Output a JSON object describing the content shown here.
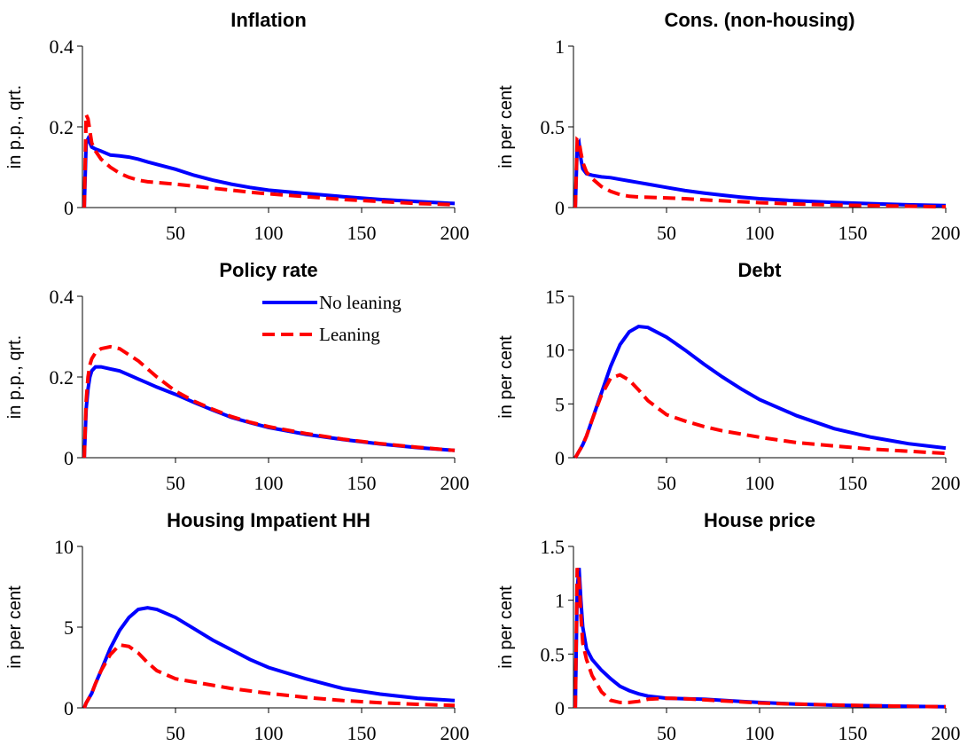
{
  "chart_data": [
    {
      "type": "line",
      "title": "Inflation",
      "y_label": "in p.p., qrt.",
      "x": [
        1,
        2,
        3,
        4,
        5,
        7,
        10,
        15,
        20,
        25,
        30,
        35,
        40,
        50,
        60,
        70,
        80,
        90,
        100,
        120,
        140,
        160,
        180,
        200
      ],
      "series": [
        {
          "color": "#0000ff",
          "dash": "solid",
          "values": [
            0,
            0.16,
            0.17,
            0.16,
            0.15,
            0.145,
            0.14,
            0.13,
            0.128,
            0.125,
            0.12,
            0.113,
            0.107,
            0.095,
            0.08,
            0.068,
            0.058,
            0.05,
            0.043,
            0.035,
            0.027,
            0.02,
            0.015,
            0.01
          ]
        },
        {
          "color": "#ff0000",
          "dash": "dashed",
          "values": [
            0,
            0.23,
            0.22,
            0.19,
            0.16,
            0.14,
            0.12,
            0.1,
            0.085,
            0.075,
            0.068,
            0.064,
            0.062,
            0.058,
            0.053,
            0.048,
            0.043,
            0.038,
            0.034,
            0.027,
            0.02,
            0.015,
            0.01,
            0.007
          ]
        }
      ],
      "xlim": [
        0,
        200
      ],
      "xticks": [
        50,
        100,
        150,
        200
      ],
      "ylim": [
        0,
        0.4
      ],
      "yticks": [
        0,
        0.2,
        0.4
      ]
    },
    {
      "type": "line",
      "title": "Cons. (non-housing)",
      "y_label": "in per cent",
      "x": [
        1,
        2,
        3,
        4,
        5,
        7,
        10,
        15,
        20,
        25,
        30,
        35,
        40,
        50,
        60,
        70,
        80,
        90,
        100,
        120,
        140,
        160,
        180,
        200
      ],
      "series": [
        {
          "color": "#0000ff",
          "dash": "solid",
          "values": [
            0,
            0.38,
            0.4,
            0.3,
            0.24,
            0.21,
            0.2,
            0.19,
            0.185,
            0.175,
            0.165,
            0.155,
            0.145,
            0.125,
            0.105,
            0.09,
            0.077,
            0.065,
            0.055,
            0.042,
            0.032,
            0.024,
            0.017,
            0.012
          ]
        },
        {
          "color": "#ff0000",
          "dash": "dashed",
          "values": [
            0,
            0.42,
            0.41,
            0.34,
            0.28,
            0.22,
            0.18,
            0.13,
            0.1,
            0.08,
            0.07,
            0.066,
            0.064,
            0.06,
            0.055,
            0.048,
            0.042,
            0.036,
            0.03,
            0.022,
            0.016,
            0.012,
            0.008,
            0.005
          ]
        }
      ],
      "xlim": [
        0,
        200
      ],
      "xticks": [
        50,
        100,
        150,
        200
      ],
      "ylim": [
        0,
        1
      ],
      "yticks": [
        0,
        0.5,
        1
      ]
    },
    {
      "type": "line",
      "title": "Policy rate",
      "y_label": "in p.p., qrt.",
      "x": [
        1,
        2,
        3,
        4,
        5,
        7,
        10,
        15,
        20,
        25,
        30,
        35,
        40,
        50,
        60,
        70,
        80,
        90,
        100,
        120,
        140,
        160,
        180,
        200
      ],
      "series": [
        {
          "name": "No leaning",
          "color": "#0000ff",
          "dash": "solid",
          "values": [
            0,
            0.12,
            0.17,
            0.2,
            0.215,
            0.225,
            0.225,
            0.22,
            0.215,
            0.205,
            0.195,
            0.185,
            0.175,
            0.157,
            0.137,
            0.118,
            0.1,
            0.087,
            0.075,
            0.058,
            0.045,
            0.034,
            0.025,
            0.018
          ]
        },
        {
          "name": "Leaning",
          "color": "#ff0000",
          "dash": "dashed",
          "values": [
            0,
            0.14,
            0.2,
            0.23,
            0.245,
            0.26,
            0.27,
            0.275,
            0.27,
            0.255,
            0.24,
            0.22,
            0.2,
            0.165,
            0.14,
            0.12,
            0.102,
            0.088,
            0.077,
            0.06,
            0.046,
            0.035,
            0.026,
            0.018
          ]
        }
      ],
      "xlim": [
        0,
        200
      ],
      "xticks": [
        50,
        100,
        150,
        200
      ],
      "ylim": [
        0,
        0.4
      ],
      "yticks": [
        0,
        0.2,
        0.4
      ],
      "legend": "upper right"
    },
    {
      "type": "line",
      "title": "Debt",
      "y_label": "in per cent",
      "x": [
        1,
        2,
        3,
        4,
        5,
        7,
        10,
        15,
        20,
        25,
        30,
        35,
        40,
        50,
        60,
        70,
        80,
        90,
        100,
        120,
        140,
        160,
        180,
        200
      ],
      "series": [
        {
          "color": "#0000ff",
          "dash": "solid",
          "values": [
            0,
            0.3,
            0.6,
            0.9,
            1.2,
            2,
            3.5,
            6,
            8.5,
            10.5,
            11.7,
            12.2,
            12.1,
            11.2,
            10,
            8.7,
            7.5,
            6.4,
            5.4,
            3.9,
            2.7,
            1.9,
            1.3,
            0.9
          ]
        },
        {
          "color": "#ff0000",
          "dash": "dashed",
          "values": [
            0,
            0.3,
            0.6,
            0.9,
            1.2,
            2,
            3.5,
            5.8,
            7.4,
            7.7,
            7.2,
            6.3,
            5.3,
            4,
            3.4,
            2.9,
            2.5,
            2.2,
            1.9,
            1.4,
            1.1,
            0.8,
            0.6,
            0.4
          ]
        }
      ],
      "xlim": [
        0,
        200
      ],
      "xticks": [
        50,
        100,
        150,
        200
      ],
      "ylim": [
        0,
        15
      ],
      "yticks": [
        0,
        5,
        10,
        15
      ]
    },
    {
      "type": "line",
      "title": "Housing Impatient HH",
      "y_label": "in per cent",
      "x": [
        1,
        2,
        3,
        4,
        5,
        7,
        10,
        15,
        20,
        25,
        30,
        35,
        40,
        50,
        60,
        70,
        80,
        90,
        100,
        120,
        140,
        160,
        180,
        200
      ],
      "series": [
        {
          "color": "#0000ff",
          "dash": "solid",
          "values": [
            0,
            0.3,
            0.5,
            0.7,
            0.9,
            1.5,
            2.3,
            3.7,
            4.8,
            5.6,
            6.1,
            6.2,
            6.1,
            5.6,
            4.9,
            4.2,
            3.6,
            3,
            2.5,
            1.8,
            1.2,
            0.85,
            0.6,
            0.45
          ]
        },
        {
          "color": "#ff0000",
          "dash": "dashed",
          "values": [
            0,
            0.3,
            0.5,
            0.7,
            0.9,
            1.5,
            2.3,
            3.3,
            3.9,
            3.8,
            3.4,
            2.8,
            2.3,
            1.8,
            1.6,
            1.4,
            1.2,
            1.05,
            0.9,
            0.65,
            0.45,
            0.32,
            0.22,
            0.15
          ]
        }
      ],
      "xlim": [
        0,
        200
      ],
      "xticks": [
        50,
        100,
        150,
        200
      ],
      "ylim": [
        0,
        10
      ],
      "yticks": [
        0,
        5,
        10
      ]
    },
    {
      "type": "line",
      "title": "House price",
      "y_label": "in per cent",
      "x": [
        1,
        2,
        3,
        4,
        5,
        7,
        10,
        15,
        20,
        25,
        30,
        35,
        40,
        50,
        60,
        70,
        80,
        90,
        100,
        120,
        140,
        160,
        180,
        200
      ],
      "series": [
        {
          "color": "#0000ff",
          "dash": "solid",
          "values": [
            0,
            1.1,
            1.3,
            1,
            0.75,
            0.55,
            0.45,
            0.35,
            0.27,
            0.2,
            0.16,
            0.13,
            0.11,
            0.09,
            0.085,
            0.08,
            0.07,
            0.06,
            0.05,
            0.035,
            0.025,
            0.02,
            0.015,
            0.01
          ]
        },
        {
          "color": "#ff0000",
          "dash": "dashed",
          "values": [
            0,
            1.3,
            1.2,
            0.85,
            0.6,
            0.45,
            0.3,
            0.15,
            0.07,
            0.05,
            0.05,
            0.06,
            0.08,
            0.09,
            0.085,
            0.075,
            0.065,
            0.055,
            0.045,
            0.035,
            0.027,
            0.02,
            0.015,
            0.01
          ]
        }
      ],
      "xlim": [
        0,
        200
      ],
      "xticks": [
        50,
        100,
        150,
        200
      ],
      "ylim": [
        0,
        1.5
      ],
      "yticks": [
        0,
        0.5,
        1,
        1.5
      ]
    }
  ]
}
